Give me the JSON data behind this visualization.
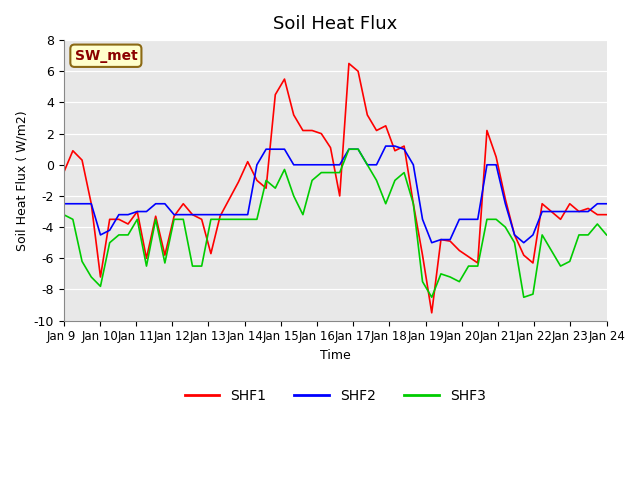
{
  "title": "Soil Heat Flux",
  "ylabel": "Soil Heat Flux ( W/m2)",
  "xlabel": "Time",
  "ylim": [
    -10,
    8
  ],
  "annotation_text": "SW_met",
  "annotation_bg": "#ffffcc",
  "annotation_border": "#8B6914",
  "x_labels": [
    "Jan 9 ",
    "Jan 10",
    "Jan 11",
    "Jan 12",
    "Jan 13",
    "Jan 14",
    "Jan 15",
    "Jan 16",
    "Jan 17",
    "Jan 18",
    "Jan 19",
    "Jan 20",
    "Jan 21",
    "Jan 22",
    "Jan 23",
    "Jan 24"
  ],
  "shf1_color": "#ff0000",
  "shf2_color": "#0000ff",
  "shf3_color": "#00cc00",
  "shf1": [
    -0.5,
    0.9,
    0.3,
    -2.5,
    -7.2,
    -3.5,
    -3.5,
    -3.8,
    -3.0,
    -6.0,
    -3.3,
    -5.8,
    -3.3,
    -2.5,
    -3.2,
    -3.5,
    -5.7,
    -3.3,
    -2.2,
    -1.1,
    0.2,
    -1.0,
    -1.5,
    4.5,
    5.5,
    3.2,
    2.2,
    2.2,
    2.0,
    1.1,
    -2.0,
    6.5,
    6.0,
    3.2,
    2.2,
    2.5,
    0.9,
    1.2,
    -2.5,
    -5.8,
    -9.5,
    -4.8,
    -4.9,
    -5.5,
    -5.9,
    -6.3,
    2.2,
    0.5,
    -2.2,
    -4.5,
    -5.8,
    -6.3,
    -2.5,
    -3.0,
    -3.5,
    -2.5,
    -3.0,
    -2.8,
    -3.2,
    -3.2
  ],
  "shf2": [
    -2.5,
    -2.5,
    -2.5,
    -2.5,
    -4.5,
    -4.2,
    -3.2,
    -3.2,
    -3.0,
    -3.0,
    -2.5,
    -2.5,
    -3.2,
    -3.2,
    -3.2,
    -3.2,
    -3.2,
    -3.2,
    -3.2,
    -3.2,
    -3.2,
    0.0,
    1.0,
    1.0,
    1.0,
    0.0,
    0.0,
    0.0,
    0.0,
    0.0,
    0.0,
    1.0,
    1.0,
    0.0,
    0.0,
    1.2,
    1.2,
    1.0,
    0.0,
    -3.5,
    -5.0,
    -4.8,
    -4.8,
    -3.5,
    -3.5,
    -3.5,
    0.0,
    0.0,
    -2.5,
    -4.5,
    -5.0,
    -4.5,
    -3.0,
    -3.0,
    -3.0,
    -3.0,
    -3.0,
    -3.0,
    -2.5,
    -2.5
  ],
  "shf3": [
    -3.2,
    -3.5,
    -6.2,
    -7.2,
    -7.8,
    -5.0,
    -4.5,
    -4.5,
    -3.5,
    -6.5,
    -3.5,
    -6.3,
    -3.5,
    -3.5,
    -6.5,
    -6.5,
    -3.5,
    -3.5,
    -3.5,
    -3.5,
    -3.5,
    -3.5,
    -1.0,
    -1.5,
    -0.3,
    -2.0,
    -3.2,
    -1.0,
    -0.5,
    -0.5,
    -0.5,
    1.0,
    1.0,
    0.0,
    -1.0,
    -2.5,
    -1.0,
    -0.5,
    -2.5,
    -7.5,
    -8.5,
    -7.0,
    -7.2,
    -7.5,
    -6.5,
    -6.5,
    -3.5,
    -3.5,
    -4.0,
    -5.0,
    -8.5,
    -8.3,
    -4.5,
    -5.5,
    -6.5,
    -6.2,
    -4.5,
    -4.5,
    -3.8,
    -4.5
  ]
}
